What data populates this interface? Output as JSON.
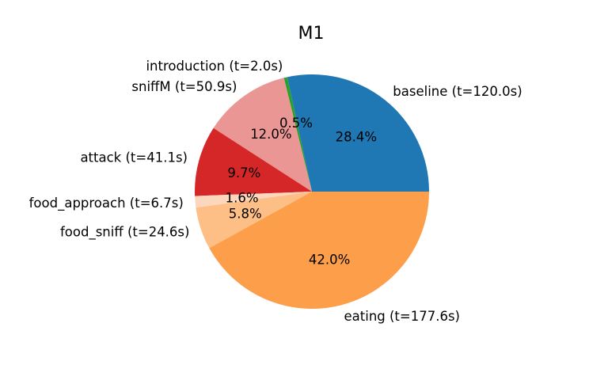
{
  "chart_data": {
    "type": "pie",
    "title": "M1",
    "start_angle_deg": 0,
    "direction": "counterclockwise",
    "slices": [
      {
        "label": "baseline (t=120.0s)",
        "value": 120.0,
        "percent_label": "28.4%",
        "color": "#1f77b4"
      },
      {
        "label": "introduction (t=2.0s)",
        "value": 2.0,
        "percent_label": "0.5%",
        "color": "#2ca02c"
      },
      {
        "label": "sniffM (t=50.9s)",
        "value": 50.9,
        "percent_label": "12.0%",
        "color": "#e99694"
      },
      {
        "label": "attack (t=41.1s)",
        "value": 41.1,
        "percent_label": "9.7%",
        "color": "#d62728"
      },
      {
        "label": "food_approach (t=6.7s)",
        "value": 6.7,
        "percent_label": "1.6%",
        "color": "#fdd7bd"
      },
      {
        "label": "food_sniff (t=24.6s)",
        "value": 24.6,
        "percent_label": "5.8%",
        "color": "#fdbf86"
      },
      {
        "label": "eating (t=177.6s)",
        "value": 177.6,
        "percent_label": "42.0%",
        "color": "#fd9e4a"
      }
    ]
  }
}
